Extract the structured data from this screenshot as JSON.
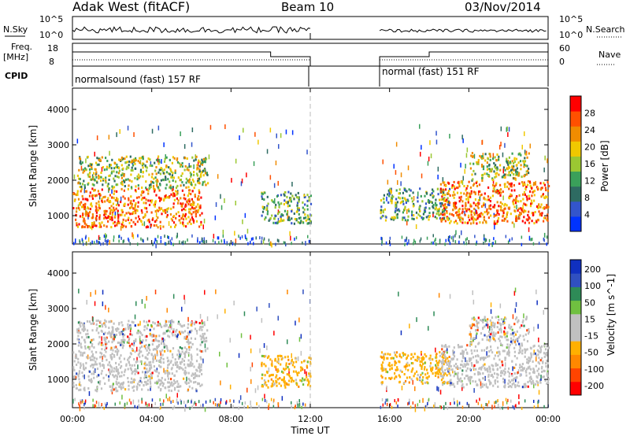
{
  "header": {
    "title": "Adak West (fitACF)",
    "beam": "Beam 10",
    "date": "03/Nov/2014"
  },
  "colors": {
    "power_scale": [
      "#0033ff",
      "#3355cc",
      "#2e6b62",
      "#3aa05a",
      "#9bc832",
      "#f0c800",
      "#f08c00",
      "#ff5000",
      "#ff0000"
    ],
    "velocity_scale": [
      "#ff0000",
      "#ff4400",
      "#ff8800",
      "#ffb000",
      "#c0c0c0",
      "#c0c0c0",
      "#70c040",
      "#2e8b57",
      "#3050c0",
      "#1030c0"
    ],
    "velocity_ground": "#c0c0c0"
  },
  "labels": {
    "nsky": "N.Sky",
    "nsearch": "N.Search",
    "freq_line1": "Freq.",
    "freq_line2": "[MHz]",
    "nave": "Nave",
    "cpid": "CPID",
    "nsky_tick_top": "10^5",
    "nsky_tick_bottom": "10^0",
    "nsearch_tick_top": "10^5",
    "nsearch_tick_bottom": "10^0",
    "freq_tick_top": "18",
    "freq_tick_bottom": "8",
    "nave_tick_top": "60",
    "nave_tick_bottom": "0",
    "cpid_segment_1": "normalsound (fast) 157 RF",
    "cpid_segment_2": "normal (fast) 151 RF"
  },
  "chart_data": [
    {
      "type": "heatmap",
      "name": "power-panel",
      "ylabel": "Slant Range [km]",
      "ylim": [
        200,
        4600
      ],
      "yticks": [
        "1000",
        "2000",
        "3000",
        "4000"
      ],
      "xlim_hours": [
        0,
        24
      ],
      "colorbar_label": "Power [dB]",
      "colorbar_ticks": [
        "4",
        "8",
        "12",
        "16",
        "20",
        "24",
        "28"
      ],
      "colorbar_range": [
        0,
        32
      ],
      "data_gap_hours": [
        12,
        15.5
      ],
      "regions": [
        {
          "t": [
            0.0,
            6.5
          ],
          "r": [
            700,
            1800
          ],
          "band": "strong"
        },
        {
          "t": [
            0.2,
            6.8
          ],
          "r": [
            1800,
            2700
          ],
          "band": "mixed"
        },
        {
          "t": [
            9.5,
            12.0
          ],
          "r": [
            800,
            1700
          ],
          "band": "moderate"
        },
        {
          "t": [
            15.5,
            19.0
          ],
          "r": [
            900,
            1800
          ],
          "band": "moderate"
        },
        {
          "t": [
            18.5,
            24.0
          ],
          "r": [
            800,
            2000
          ],
          "band": "strong"
        },
        {
          "t": [
            20.0,
            23.0
          ],
          "r": [
            2000,
            2800
          ],
          "band": "mixed"
        }
      ]
    },
    {
      "type": "heatmap",
      "name": "velocity-panel",
      "ylabel": "Slant Range [km]",
      "ylim": [
        200,
        4600
      ],
      "yticks": [
        "1000",
        "2000",
        "3000",
        "4000"
      ],
      "xlim_hours": [
        0,
        24
      ],
      "xticks": [
        "00:00",
        "04:00",
        "08:00",
        "12:00",
        "16:00",
        "20:00",
        "00:00"
      ],
      "xlabel": "Time UT",
      "colorbar_label": "Velocity [m s^-1]",
      "colorbar_ticks": [
        "200",
        "100",
        "50",
        "15",
        "-15",
        "-50",
        "-100",
        "-200"
      ],
      "data_gap_hours": [
        12,
        15.5
      ],
      "regions": [
        {
          "t": [
            0.0,
            6.5
          ],
          "r": [
            700,
            1800
          ],
          "band": "ground"
        },
        {
          "t": [
            0.2,
            6.8
          ],
          "r": [
            1800,
            2700
          ],
          "band": "ground-mixed"
        },
        {
          "t": [
            9.5,
            12.0
          ],
          "r": [
            800,
            1700
          ],
          "band": "negative"
        },
        {
          "t": [
            15.5,
            19.0
          ],
          "r": [
            900,
            1800
          ],
          "band": "negative"
        },
        {
          "t": [
            18.5,
            24.0
          ],
          "r": [
            800,
            2000
          ],
          "band": "ground"
        },
        {
          "t": [
            20.0,
            23.0
          ],
          "r": [
            2000,
            2800
          ],
          "band": "ground-mixed"
        }
      ]
    }
  ]
}
